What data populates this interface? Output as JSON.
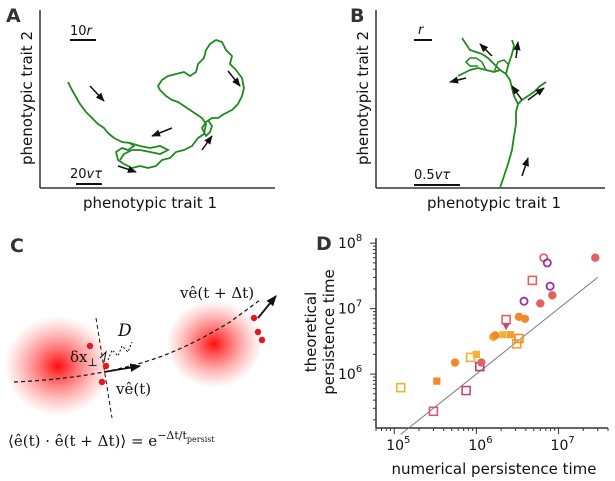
{
  "panels": {
    "A": {
      "letter": "A",
      "xlabel": "phenotypic trait 1",
      "ylabel": "phenotypic trait 2",
      "scale_top_prefix": "10",
      "scale_top_var": "r",
      "scale_bottom_prefix": "20",
      "scale_bottom_var": "vτ"
    },
    "B": {
      "letter": "B",
      "xlabel": "phenotypic trait 1",
      "ylabel": "phenotypic trait 2",
      "scale_top_var": "r",
      "scale_bottom_prefix": "0.5",
      "scale_bottom_var": "vτ"
    },
    "C": {
      "letter": "C",
      "label_D": "D",
      "label_dx": "δx",
      "label_dx_sub": "⊥",
      "label_ve_t": "vê(t)",
      "label_ve_tdt": "vê(t + Δt)",
      "equation_left": "⟨ê(t) · ê(t + Δt)⟩ = e",
      "equation_exp": "−Δt/t",
      "equation_exp_sub": "persist"
    },
    "D": {
      "letter": "D",
      "chart_data": {
        "type": "scatter",
        "xlabel": "numerical persistence time",
        "ylabel_line1": "theoretical",
        "ylabel_line2": "persistence time",
        "xscale": "log",
        "yscale": "log",
        "xlim": [
          60000,
          40000000
        ],
        "ylim": [
          150000,
          120000000
        ],
        "xticks": [
          {
            "value": 100000,
            "base": "10",
            "exp": "5"
          },
          {
            "value": 1000000,
            "base": "10",
            "exp": "6"
          },
          {
            "value": 10000000,
            "base": "10",
            "exp": "7"
          }
        ],
        "yticks": [
          {
            "value": 1000000,
            "base": "10",
            "exp": "6"
          },
          {
            "value": 10000000,
            "base": "10",
            "exp": "7"
          },
          {
            "value": 100000000,
            "base": "10",
            "exp": "8"
          }
        ],
        "reference_line": {
          "x": [
            120000,
            30000000
          ],
          "y": [
            120000,
            30000000
          ],
          "color": "#777777"
        },
        "points": [
          {
            "x": 120000,
            "y": 620000,
            "marker": "square-open",
            "color": "#f2b233"
          },
          {
            "x": 330000,
            "y": 780000,
            "marker": "square",
            "color": "#f08a2c"
          },
          {
            "x": 300000,
            "y": 270000,
            "marker": "square-open",
            "color": "#d9577a"
          },
          {
            "x": 550000,
            "y": 1500000,
            "marker": "circle",
            "color": "#f28a2a"
          },
          {
            "x": 750000,
            "y": 560000,
            "marker": "square-open",
            "color": "#c7477a"
          },
          {
            "x": 850000,
            "y": 1800000,
            "marker": "square-open",
            "color": "#f2b233"
          },
          {
            "x": 1000000,
            "y": 2000000,
            "marker": "square",
            "color": "#f2b233"
          },
          {
            "x": 1100000,
            "y": 1300000,
            "marker": "square-open",
            "color": "#b53e8a"
          },
          {
            "x": 1150000,
            "y": 1500000,
            "marker": "circle",
            "color": "#e2605f"
          },
          {
            "x": 1600000,
            "y": 3700000,
            "marker": "circle",
            "color": "#f2b233"
          },
          {
            "x": 1700000,
            "y": 3900000,
            "marker": "circle",
            "color": "#f08a2c"
          },
          {
            "x": 2100000,
            "y": 4000000,
            "marker": "square",
            "color": "#f2b233"
          },
          {
            "x": 2300000,
            "y": 6800000,
            "marker": "square-open",
            "color": "#e2605f"
          },
          {
            "x": 2300000,
            "y": 5400000,
            "marker": "triangle",
            "color": "#c7477a"
          },
          {
            "x": 2600000,
            "y": 4000000,
            "marker": "square",
            "color": "#f2a030"
          },
          {
            "x": 3100000,
            "y": 2900000,
            "marker": "square-open",
            "color": "#f2a030"
          },
          {
            "x": 3300000,
            "y": 3500000,
            "marker": "square-open",
            "color": "#f08a2c"
          },
          {
            "x": 3300000,
            "y": 7500000,
            "marker": "circle",
            "color": "#f08a2c"
          },
          {
            "x": 3900000,
            "y": 7000000,
            "marker": "circle",
            "color": "#f08a2c"
          },
          {
            "x": 3800000,
            "y": 13000000,
            "marker": "circle-open",
            "color": "#9a2fa0"
          },
          {
            "x": 4800000,
            "y": 27000000,
            "marker": "square-open",
            "color": "#e2605f"
          },
          {
            "x": 6000000,
            "y": 12000000,
            "marker": "circle",
            "color": "#e2605f"
          },
          {
            "x": 6600000,
            "y": 60000000,
            "marker": "circle-open",
            "color": "#e2605f"
          },
          {
            "x": 7300000,
            "y": 50000000,
            "marker": "circle-open",
            "color": "#9a2fa0"
          },
          {
            "x": 7900000,
            "y": 22000000,
            "marker": "circle-open",
            "color": "#9a2fa0"
          },
          {
            "x": 8400000,
            "y": 16000000,
            "marker": "circle",
            "color": "#e2605f"
          },
          {
            "x": 28000000,
            "y": 60000000,
            "marker": "circle",
            "color": "#e2605f"
          }
        ]
      }
    }
  },
  "colors": {
    "trajectory": "#1e8a1e",
    "blob": "#ff1a1a",
    "dot": "#e8141e",
    "axis": "#333333"
  }
}
